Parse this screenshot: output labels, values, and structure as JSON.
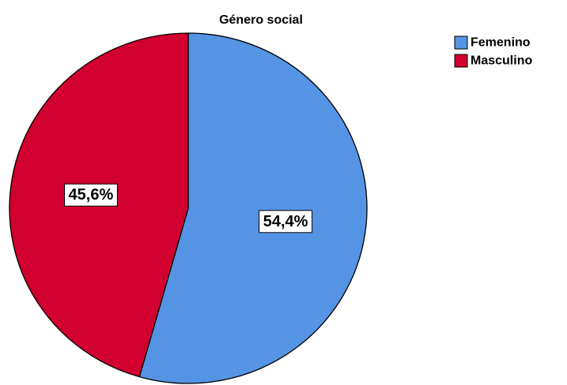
{
  "chart_data": {
    "type": "pie",
    "title": "Género social",
    "categories": [
      "Femenino",
      "Masculino"
    ],
    "values": [
      54.4,
      45.6
    ],
    "data_labels": [
      "54,4%",
      "45,6%"
    ],
    "colors": [
      "#5594e4",
      "#d1002f"
    ],
    "start": "top",
    "direction": "clockwise",
    "legend_position": "top-right"
  }
}
